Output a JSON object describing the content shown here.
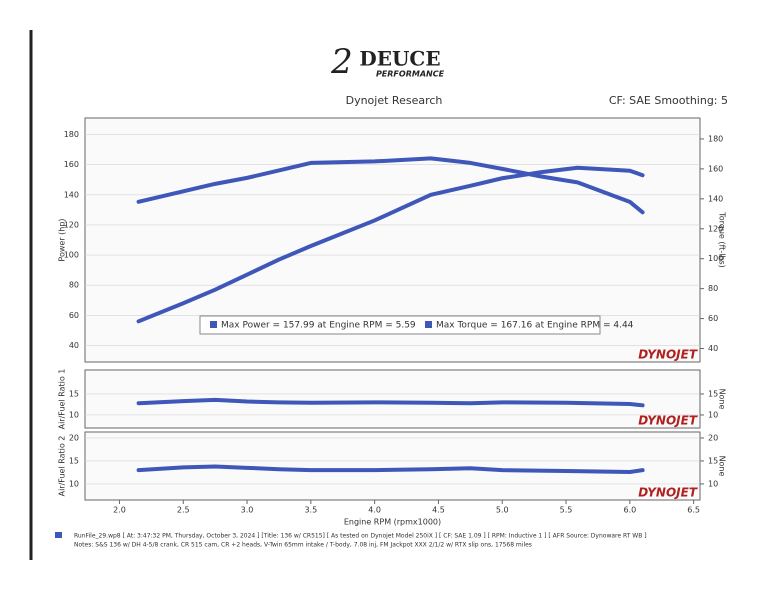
{
  "header": {
    "logo_number": "2",
    "logo": "DEUCE",
    "logo_sub": "PERFORMANCE",
    "title": "Dynojet Research",
    "settings": "CF: SAE Smoothing: 5"
  },
  "footer": {
    "line1": "RunFile_29.wp8 [ At: 3:47:32 PM, Thursday, October 3, 2024 ] [Title: 136 w/ CR515] [ As tested on Dynojet Model 250iX ] [ CF: SAE 1.09 ] [ RPM: Inductive 1 ] [ AFR Source: Dynoware RT WB ]",
    "line2": "Notes: S&S 136 w/ DH 4-5/8 crank, CR 515 cam, CR +2 heads, V-Twin 65mm intake / T-body, 7.08 inj, FM Jackpot XXX 2/1/2 w/ RTX slip ons, 17568 miles"
  },
  "chart_data": [
    {
      "type": "line",
      "ylabel": "Power (hp)",
      "y2label": "Torque (ft-lbs)",
      "watermark": "DYNOJET",
      "grid": true,
      "xlim": [
        1.73,
        6.55
      ],
      "ylim": [
        29,
        191
      ],
      "yticks": [
        40,
        60,
        80,
        100,
        120,
        140,
        160,
        180
      ],
      "y2lim": [
        31,
        194
      ],
      "y2ticks": [
        40,
        60,
        80,
        100,
        120,
        140,
        160,
        180
      ],
      "x": [
        2.15,
        2.5,
        2.75,
        3.0,
        3.25,
        3.5,
        4.0,
        4.44,
        4.75,
        5.0,
        5.3,
        5.59,
        6.0,
        6.1
      ],
      "series": [
        {
          "name": "Max Power = 157.99 at Engine RPM = 5.59",
          "color": "#3f57b8",
          "axis": "y",
          "values": [
            56,
            68,
            77,
            87,
            97,
            106,
            123,
            140,
            146,
            151,
            155,
            158,
            156,
            153
          ]
        },
        {
          "name": "Max Torque = 167.16 at Engine RPM = 4.44",
          "color": "#3f57b8",
          "axis": "y2",
          "values": [
            138,
            145,
            150,
            154,
            159,
            164,
            165,
            167,
            164,
            160,
            155,
            151,
            138,
            131
          ]
        }
      ]
    },
    {
      "type": "line",
      "ylabel": "Air/Fuel Ratio 1",
      "y2label": "None",
      "watermark": "DYNOJET",
      "grid": true,
      "xlim": [
        1.73,
        6.55
      ],
      "ylim": [
        6.9,
        20.7
      ],
      "yticks": [
        10,
        15
      ],
      "y2lim": [
        6.9,
        20.7
      ],
      "y2ticks": [
        10,
        15
      ],
      "x": [
        2.15,
        2.5,
        2.75,
        3.0,
        3.25,
        3.5,
        4.0,
        4.44,
        4.75,
        5.0,
        5.5,
        6.0,
        6.1
      ],
      "series": [
        {
          "name": "AFR 1",
          "color": "#3f57b8",
          "axis": "y",
          "values": [
            12.8,
            13.3,
            13.6,
            13.2,
            13.0,
            12.9,
            13.0,
            12.9,
            12.8,
            13.0,
            12.9,
            12.6,
            12.3
          ]
        }
      ]
    },
    {
      "type": "line",
      "ylabel": "Air/Fuel Ratio 2",
      "y2label": "None",
      "watermark": "DYNOJET",
      "grid": true,
      "xlabel": "Engine RPM (rpmx1000)",
      "xlim": [
        1.73,
        6.55
      ],
      "ylim": [
        6.5,
        21.3
      ],
      "yticks": [
        10,
        15,
        20
      ],
      "y2lim": [
        6.5,
        21.3
      ],
      "y2ticks": [
        10,
        15,
        20
      ],
      "xticks": [
        {
          "value": 2,
          "label": "2.0"
        },
        2.5,
        {
          "value": 3,
          "label": "3.0"
        },
        3.5,
        {
          "value": 4,
          "label": "4.0"
        },
        4.5,
        {
          "value": 5,
          "label": "5.0"
        },
        5.5,
        {
          "value": 6,
          "label": "6.0"
        },
        6.5
      ],
      "x": [
        2.15,
        2.5,
        2.75,
        3.0,
        3.25,
        3.5,
        4.0,
        4.44,
        4.75,
        5.0,
        5.5,
        6.0,
        6.1
      ],
      "series": [
        {
          "name": "AFR 2",
          "color": "#3f57b8",
          "axis": "y",
          "values": [
            13.0,
            13.6,
            13.8,
            13.5,
            13.2,
            13.0,
            13.0,
            13.2,
            13.4,
            13.0,
            12.8,
            12.6,
            13.0
          ]
        }
      ]
    }
  ]
}
